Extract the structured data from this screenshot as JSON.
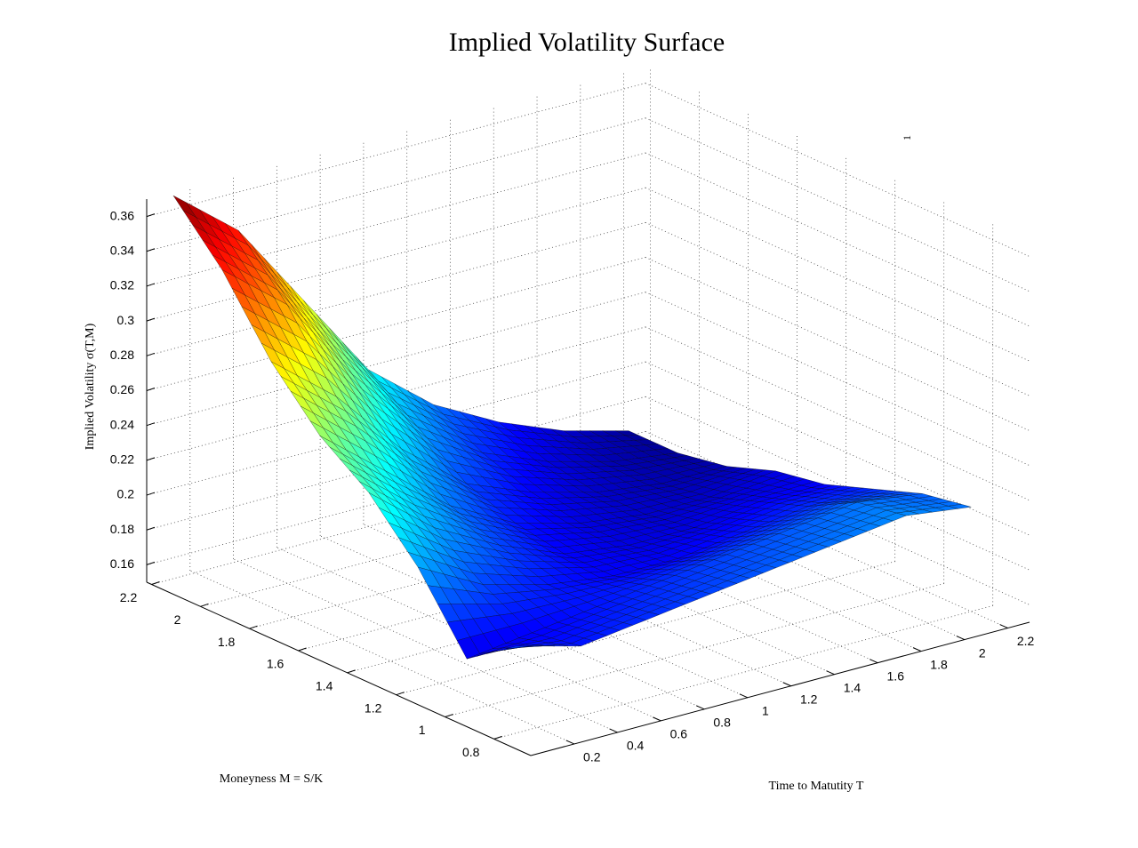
{
  "chart_data": {
    "type": "surface",
    "title": "Implied Volatility Surface",
    "x_label": "Time to Matutity T",
    "y_label": "Moneyness M = S/K",
    "z_label": "Implied Volatility σ(T,M)",
    "annotation": "1",
    "colormap": "jet",
    "clim": [
      0.16,
      0.37
    ],
    "x": [
      0.1,
      0.4,
      0.7,
      1.0,
      1.3,
      1.6,
      1.9,
      2.2
    ],
    "y": [
      0.8,
      1.0,
      1.2,
      1.4,
      1.6,
      1.8,
      2.0,
      2.2
    ],
    "z": [
      [
        0.2,
        0.19,
        0.195,
        0.2,
        0.205,
        0.21,
        0.215,
        0.21
      ],
      [
        0.18,
        0.185,
        0.19,
        0.195,
        0.2,
        0.205,
        0.21,
        0.205
      ],
      [
        0.22,
        0.2,
        0.19,
        0.185,
        0.185,
        0.19,
        0.195,
        0.195
      ],
      [
        0.25,
        0.22,
        0.2,
        0.185,
        0.18,
        0.18,
        0.185,
        0.185
      ],
      [
        0.27,
        0.24,
        0.21,
        0.19,
        0.18,
        0.175,
        0.175,
        0.18
      ],
      [
        0.3,
        0.27,
        0.23,
        0.2,
        0.185,
        0.175,
        0.17,
        0.17
      ],
      [
        0.34,
        0.31,
        0.26,
        0.22,
        0.195,
        0.18,
        0.17,
        0.165
      ],
      [
        0.37,
        0.34,
        0.29,
        0.24,
        0.21,
        0.19,
        0.175,
        0.165
      ]
    ],
    "xlim": [
      0,
      2.3
    ],
    "ylim": [
      0.65,
      2.22
    ],
    "zlim": [
      0.15,
      0.37
    ],
    "xticks": [
      0.2,
      0.4,
      0.6,
      0.8,
      1,
      1.2,
      1.4,
      1.6,
      1.8,
      2,
      2.2
    ],
    "yticks": [
      0.8,
      1,
      1.2,
      1.4,
      1.6,
      1.8,
      2,
      2.2
    ],
    "zticks": [
      0.16,
      0.18,
      0.2,
      0.22,
      0.24,
      0.26,
      0.28,
      0.3,
      0.32,
      0.34,
      0.36
    ],
    "grid": true
  }
}
